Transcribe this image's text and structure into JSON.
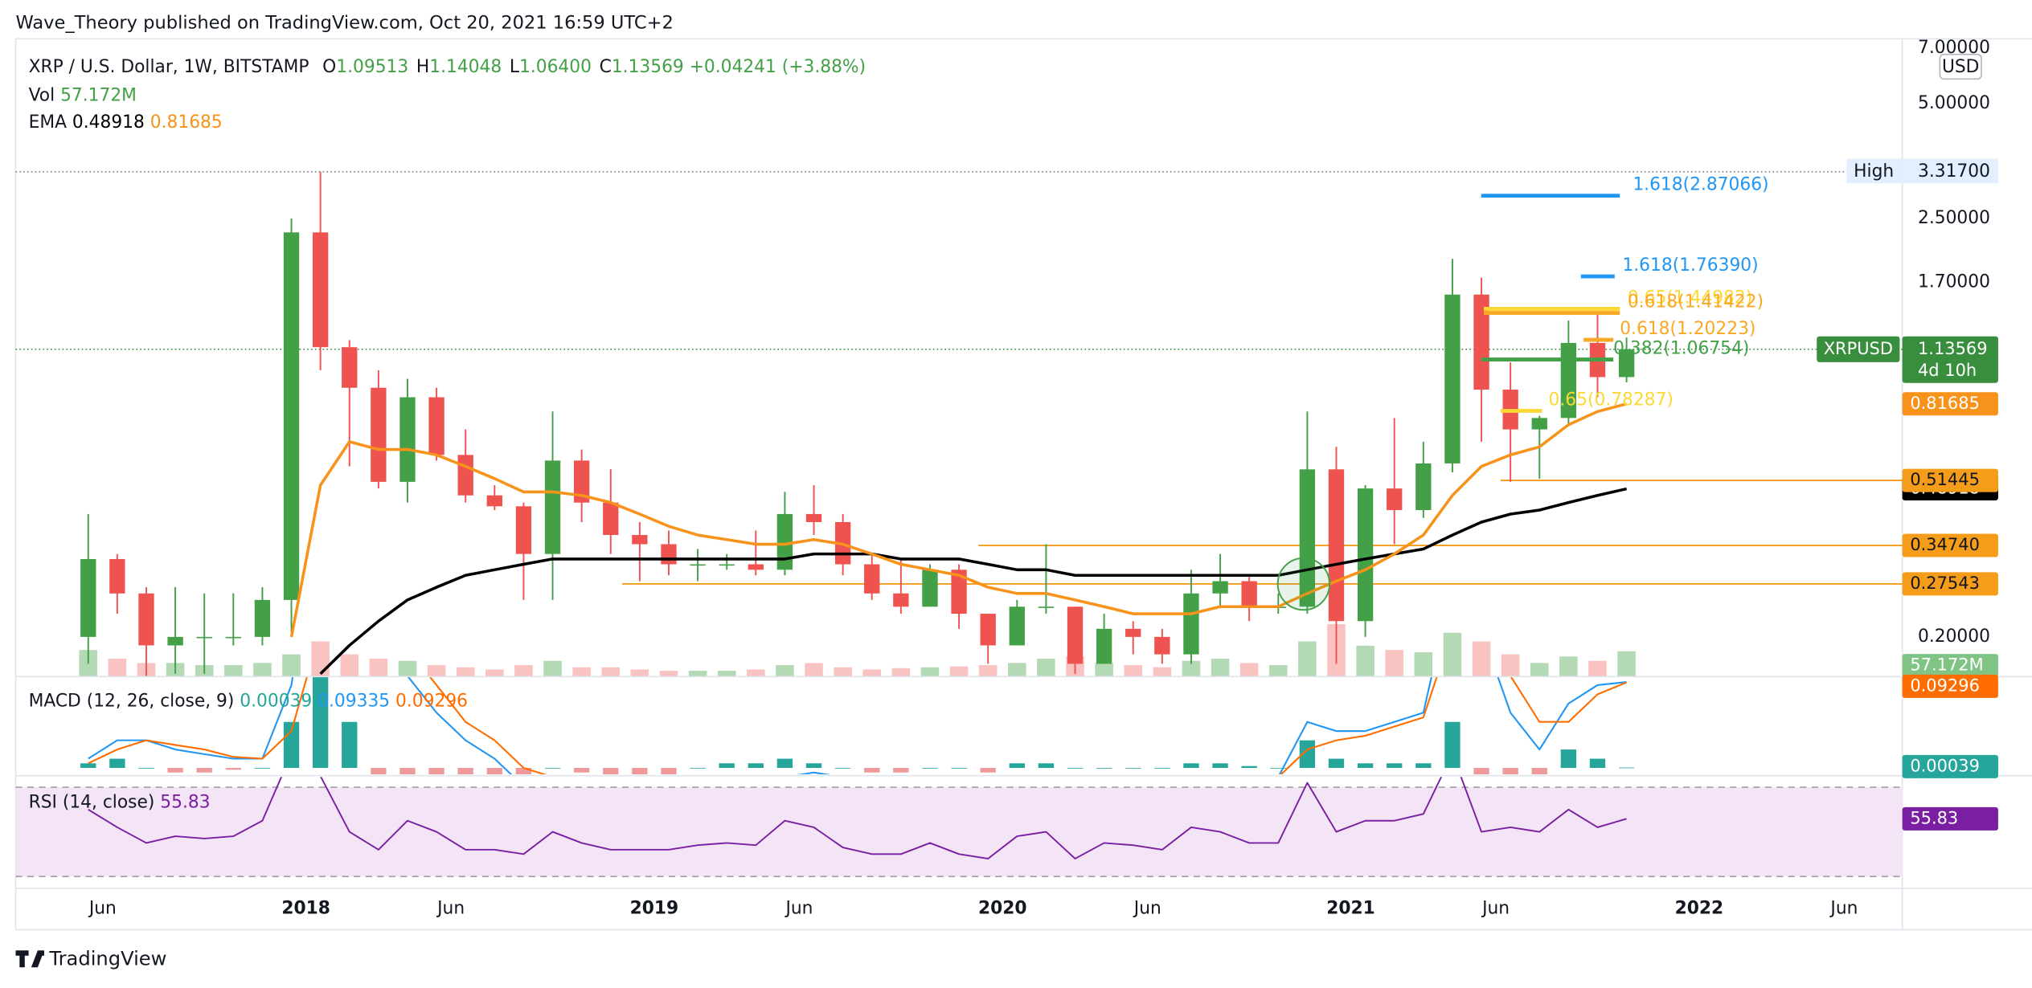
{
  "header": {
    "publisher": "Wave_Theory published on TradingView.com, Oct 20, 2021 16:59 UTC+2",
    "footer": "TradingView"
  },
  "chart_data": {
    "type": "candlestick",
    "title": "XRP / U.S. Dollar, 1W, BITSTAMP",
    "legend": [
      {
        "key": "O",
        "value": "1.09513"
      },
      {
        "key": "H",
        "value": "1.14048"
      },
      {
        "key": "L",
        "value": "1.06400"
      },
      {
        "key": "C",
        "value": "1.13569"
      }
    ],
    "change": "+0.04241 (+3.88%)",
    "currency": "USD",
    "up_color": "#43a047",
    "down_color": "#ef5350",
    "log": true,
    "grid": false,
    "xlim": [
      "2017-03",
      "2022-08"
    ],
    "xticks": [
      {
        "value": "2017-06",
        "label": "Jun"
      },
      {
        "value": "2018-01",
        "label": "2018"
      },
      {
        "value": "2018-06",
        "label": "Jun"
      },
      {
        "value": "2019-01",
        "label": "2019"
      },
      {
        "value": "2019-06",
        "label": "Jun"
      },
      {
        "value": "2020-01",
        "label": "2020"
      },
      {
        "value": "2020-06",
        "label": "Jun"
      },
      {
        "value": "2021-01",
        "label": "2021"
      },
      {
        "value": "2021-06",
        "label": "Jun"
      },
      {
        "value": "2022-01",
        "label": "2022"
      },
      {
        "value": "2022-06",
        "label": "Jun"
      }
    ],
    "ylim": [
      0.158,
      7.4
    ],
    "yticks": [
      {
        "value": 7,
        "label": "7.00000"
      },
      {
        "value": 5,
        "label": "5.00000"
      },
      {
        "value": 2.5,
        "label": "2.50000"
      },
      {
        "value": 1.7,
        "label": "1.70000"
      },
      {
        "value": 0.2,
        "label": "0.20000"
      }
    ],
    "x": [
      "2017-05",
      "2017-06",
      "2017-07",
      "2017-08",
      "2017-09",
      "2017-10",
      "2017-11",
      "2017-12",
      "2018-01",
      "2018-02",
      "2018-03",
      "2018-04",
      "2018-05",
      "2018-06",
      "2018-07",
      "2018-08",
      "2018-09",
      "2018-10",
      "2018-11",
      "2018-12",
      "2019-01",
      "2019-02",
      "2019-03",
      "2019-04",
      "2019-05",
      "2019-06",
      "2019-07",
      "2019-08",
      "2019-09",
      "2019-10",
      "2019-11",
      "2019-12",
      "2020-01",
      "2020-02",
      "2020-03",
      "2020-04",
      "2020-05",
      "2020-06",
      "2020-07",
      "2020-08",
      "2020-09",
      "2020-10",
      "2020-11",
      "2020-12",
      "2021-01",
      "2021-02",
      "2021-03",
      "2021-04",
      "2021-05",
      "2021-06",
      "2021-07",
      "2021-08",
      "2021-09",
      "2021-10"
    ],
    "open": [
      0.2,
      0.32,
      0.26,
      0.19,
      0.2,
      0.2,
      0.2,
      0.25,
      2.3,
      1.15,
      0.9,
      0.51,
      0.85,
      0.6,
      0.47,
      0.44,
      0.33,
      0.58,
      0.45,
      0.37,
      0.35,
      0.31,
      0.31,
      0.31,
      0.3,
      0.42,
      0.4,
      0.31,
      0.26,
      0.24,
      0.3,
      0.23,
      0.19,
      0.24,
      0.24,
      0.17,
      0.21,
      0.2,
      0.18,
      0.26,
      0.28,
      0.24,
      0.24,
      0.55,
      0.22,
      0.49,
      0.43,
      0.57,
      1.58,
      0.89,
      0.7,
      0.75,
      1.18,
      0.96
    ],
    "high": [
      0.42,
      0.33,
      0.27,
      0.27,
      0.26,
      0.26,
      0.27,
      2.5,
      3.317,
      1.2,
      1.0,
      0.95,
      0.9,
      0.7,
      0.5,
      0.45,
      0.78,
      0.62,
      0.55,
      0.4,
      0.38,
      0.34,
      0.33,
      0.38,
      0.48,
      0.5,
      0.42,
      0.33,
      0.32,
      0.31,
      0.31,
      0.23,
      0.25,
      0.35,
      0.24,
      0.23,
      0.22,
      0.21,
      0.3,
      0.33,
      0.29,
      0.26,
      0.78,
      0.63,
      0.5,
      0.75,
      0.65,
      1.96,
      1.75,
      1.05,
      0.76,
      1.35,
      1.41,
      1.22
    ],
    "low": [
      0.17,
      0.23,
      0.15,
      0.16,
      0.16,
      0.19,
      0.19,
      0.2,
      1.0,
      0.56,
      0.49,
      0.45,
      0.58,
      0.45,
      0.43,
      0.25,
      0.25,
      0.4,
      0.33,
      0.28,
      0.29,
      0.28,
      0.3,
      0.29,
      0.29,
      0.37,
      0.29,
      0.25,
      0.23,
      0.24,
      0.21,
      0.17,
      0.19,
      0.23,
      0.16,
      0.17,
      0.18,
      0.17,
      0.17,
      0.24,
      0.22,
      0.23,
      0.23,
      0.17,
      0.2,
      0.35,
      0.41,
      0.54,
      0.65,
      0.51,
      0.52,
      0.72,
      0.85,
      0.93
    ],
    "close": [
      0.32,
      0.26,
      0.19,
      0.2,
      0.2,
      0.2,
      0.25,
      2.3,
      1.15,
      0.9,
      0.51,
      0.85,
      0.6,
      0.47,
      0.44,
      0.33,
      0.58,
      0.45,
      0.37,
      0.35,
      0.31,
      0.31,
      0.31,
      0.3,
      0.42,
      0.4,
      0.31,
      0.26,
      0.24,
      0.3,
      0.23,
      0.19,
      0.24,
      0.24,
      0.17,
      0.21,
      0.2,
      0.18,
      0.26,
      0.28,
      0.24,
      0.24,
      0.55,
      0.22,
      0.49,
      0.43,
      0.57,
      1.58,
      0.89,
      0.7,
      0.75,
      1.18,
      0.96,
      1.13569
    ],
    "ema": {
      "name": "EMA",
      "lines": [
        {
          "color": "#000000",
          "values": [
            null,
            null,
            null,
            null,
            null,
            null,
            null,
            null,
            0.16,
            0.19,
            0.22,
            0.25,
            0.27,
            0.29,
            0.3,
            0.31,
            0.32,
            0.32,
            0.32,
            0.32,
            0.32,
            0.32,
            0.32,
            0.32,
            0.32,
            0.33,
            0.33,
            0.33,
            0.32,
            0.32,
            0.32,
            0.31,
            0.3,
            0.3,
            0.29,
            0.29,
            0.29,
            0.29,
            0.29,
            0.29,
            0.29,
            0.29,
            0.3,
            0.31,
            0.32,
            0.33,
            0.34,
            0.37,
            0.4,
            0.42,
            0.43,
            0.45,
            0.47,
            0.48918
          ]
        },
        {
          "color": "#f7931a",
          "values": [
            null,
            null,
            null,
            null,
            null,
            null,
            null,
            0.2,
            0.5,
            0.65,
            0.62,
            0.62,
            0.6,
            0.56,
            0.52,
            0.48,
            0.48,
            0.47,
            0.45,
            0.42,
            0.39,
            0.37,
            0.36,
            0.35,
            0.35,
            0.36,
            0.35,
            0.33,
            0.31,
            0.3,
            0.29,
            0.27,
            0.26,
            0.26,
            0.25,
            0.24,
            0.23,
            0.23,
            0.23,
            0.24,
            0.24,
            0.24,
            0.26,
            0.28,
            0.3,
            0.33,
            0.37,
            0.47,
            0.56,
            0.6,
            0.63,
            0.72,
            0.78,
            0.81685
          ]
        }
      ]
    },
    "volume": {
      "name": "Vol",
      "last_label": "57.172M",
      "values": [
        60,
        40,
        30,
        30,
        25,
        25,
        30,
        50,
        80,
        50,
        40,
        35,
        25,
        20,
        15,
        25,
        35,
        20,
        20,
        15,
        12,
        12,
        12,
        15,
        25,
        30,
        20,
        15,
        18,
        20,
        22,
        25,
        30,
        40,
        45,
        30,
        25,
        20,
        35,
        40,
        30,
        25,
        80,
        120,
        70,
        60,
        55,
        100,
        80,
        50,
        30,
        45,
        35,
        57.172
      ]
    },
    "macd": {
      "name": "MACD (12, 26, close, 9)",
      "lim": [
        -0.007,
        0.0986
      ],
      "histogram": [
        0.005,
        0.01,
        0,
        -0.005,
        -0.005,
        -0.002,
        0,
        0.05,
        0.15,
        0.05,
        -0.03,
        -0.03,
        -0.03,
        -0.02,
        -0.02,
        -0.02,
        0,
        -0.005,
        -0.01,
        -0.01,
        -0.01,
        0,
        0.005,
        0.005,
        0.01,
        0.005,
        0,
        -0.005,
        -0.005,
        0,
        0,
        -0.005,
        0.005,
        0.005,
        0,
        0,
        0,
        0,
        0.005,
        0.005,
        0.002,
        0,
        0.03,
        0.01,
        0.005,
        0.005,
        0.005,
        0.05,
        -0.01,
        -0.04,
        -0.03,
        0.02,
        0.01,
        0.00039
      ],
      "macd": [
        0.01,
        0.03,
        0.03,
        0.02,
        0.015,
        0.01,
        0.01,
        0.09,
        0.3,
        0.25,
        0.15,
        0.1,
        0.06,
        0.03,
        0.01,
        -0.02,
        -0.01,
        -0.02,
        -0.04,
        -0.05,
        -0.06,
        -0.05,
        -0.04,
        -0.03,
        -0.01,
        -0.005,
        -0.01,
        -0.02,
        -0.03,
        -0.03,
        -0.03,
        -0.04,
        -0.03,
        -0.02,
        -0.03,
        -0.03,
        -0.03,
        -0.03,
        -0.02,
        -0.01,
        -0.01,
        -0.01,
        0.05,
        0.04,
        0.04,
        0.05,
        0.06,
        0.2,
        0.15,
        0.06,
        0.02,
        0.07,
        0.09,
        0.09335
      ],
      "signal": [
        0.005,
        0.02,
        0.03,
        0.025,
        0.02,
        0.012,
        0.01,
        0.04,
        0.15,
        0.2,
        0.18,
        0.13,
        0.09,
        0.05,
        0.03,
        0.0,
        -0.01,
        -0.015,
        -0.03,
        -0.04,
        -0.05,
        -0.05,
        -0.045,
        -0.035,
        -0.02,
        -0.01,
        -0.01,
        -0.015,
        -0.025,
        -0.03,
        -0.03,
        -0.035,
        -0.035,
        -0.025,
        -0.03,
        -0.03,
        -0.03,
        -0.03,
        -0.025,
        -0.015,
        -0.012,
        -0.01,
        0.02,
        0.03,
        0.035,
        0.045,
        0.055,
        0.15,
        0.16,
        0.1,
        0.05,
        0.05,
        0.08,
        0.09296
      ],
      "macd_color": "#2196f3",
      "signal_color": "#ff6d00",
      "pos_color": "#26a69a",
      "neg_color": "#ef9a9a"
    },
    "rsi": {
      "name": "RSI (14, close)",
      "lim": [
        24.7,
        74.6
      ],
      "bands": [
        70,
        30
      ],
      "color": "#7b1fa2",
      "values": [
        60,
        52,
        45,
        48,
        47,
        48,
        55,
        85,
        75,
        50,
        42,
        55,
        50,
        42,
        42,
        40,
        50,
        45,
        42,
        42,
        42,
        44,
        45,
        44,
        55,
        52,
        43,
        40,
        40,
        45,
        40,
        38,
        48,
        50,
        38,
        45,
        44,
        42,
        52,
        50,
        45,
        45,
        72,
        50,
        55,
        55,
        58,
        85,
        50,
        52,
        50,
        60,
        52,
        55.83
      ]
    },
    "levels": [
      {
        "value": 0.51445,
        "label": "0.51445",
        "color": "#f59c1a"
      },
      {
        "value": 0.3474,
        "label": "0.34740",
        "color": "#f59c1a"
      },
      {
        "value": 0.27543,
        "label": "0.27543",
        "color": "#f59c1a"
      }
    ],
    "annotations": [
      {
        "label": "1.618(2.87066)",
        "value": 2.87066,
        "color": "#2196f3"
      },
      {
        "label": "1.618(1.76390)",
        "value": 1.7639,
        "color": "#2196f3"
      },
      {
        "label": "0.65(1.44982)",
        "value": 1.44982,
        "color": "#fdd835"
      },
      {
        "label": "0.618(1.41422)",
        "value": 1.41422,
        "color": "#f9a825"
      },
      {
        "label": "0.618(1.20223)",
        "value": 1.20223,
        "color": "#f9a825"
      },
      {
        "label": "0.382(1.06754)",
        "value": 1.06754,
        "color": "#43a047"
      },
      {
        "label": "0.65(0.78287)",
        "value": 0.78287,
        "color": "#fdd835"
      }
    ],
    "high_marker": {
      "label": "High",
      "value": 3.317,
      "value_label": "3.31700"
    },
    "last": {
      "symbol": "XRPUSD",
      "countdown": "4d 10h",
      "color": "#388e3c"
    }
  }
}
